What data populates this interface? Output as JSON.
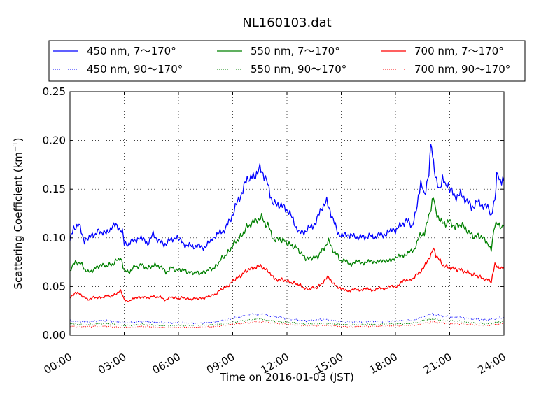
{
  "chart_data": {
    "type": "line",
    "title": "NL160103.dat",
    "xlabel": "Time on 2016-01-03 (JST)",
    "ylabel_main": "Scattering Coefficient (km",
    "ylabel_sup": "−1",
    "ylabel_close": ")",
    "xlim": [
      0,
      24
    ],
    "ylim": [
      0,
      0.25
    ],
    "x_ticks": [
      0,
      3,
      6,
      9,
      12,
      15,
      18,
      21,
      24
    ],
    "x_tick_labels": [
      "00:00",
      "03:00",
      "06:00",
      "09:00",
      "12:00",
      "15:00",
      "18:00",
      "21:00",
      "24:00"
    ],
    "y_ticks": [
      0,
      0.05,
      0.1,
      0.15,
      0.2,
      0.25
    ],
    "y_tick_labels": [
      "0.00",
      "0.05",
      "0.10",
      "0.15",
      "0.20",
      "0.25"
    ],
    "grid": true,
    "legend_position": "top (above plot)",
    "series": [
      {
        "name": "450 nm, 7～170°",
        "color": "#0000ff",
        "style": "solid",
        "x": [
          0,
          0.2,
          0.5,
          0.8,
          1.0,
          1.3,
          1.7,
          2.0,
          2.3,
          2.6,
          2.9,
          3.0,
          3.2,
          3.5,
          3.8,
          4.0,
          4.3,
          4.6,
          4.9,
          5.2,
          5.5,
          5.8,
          6.0,
          6.3,
          6.6,
          6.9,
          7.2,
          7.5,
          7.8,
          8.0,
          8.3,
          8.6,
          8.9,
          9.2,
          9.5,
          9.8,
          10.0,
          10.2,
          10.5,
          10.8,
          11.0,
          11.2,
          11.5,
          11.8,
          12.1,
          12.4,
          12.7,
          13.0,
          13.3,
          13.6,
          13.9,
          14.2,
          14.5,
          14.8,
          15.1,
          15.4,
          15.7,
          16.0,
          16.3,
          16.6,
          16.9,
          17.2,
          17.5,
          17.8,
          18.0,
          18.3,
          18.6,
          18.9,
          19.2,
          19.4,
          19.6,
          19.8,
          19.9,
          20.0,
          20.1,
          20.2,
          20.4,
          20.6,
          20.8,
          21.0,
          21.3,
          21.6,
          21.9,
          22.2,
          22.5,
          22.8,
          23.1,
          23.3,
          23.5,
          23.6,
          23.8,
          24.0
        ],
        "y": [
          0.097,
          0.112,
          0.114,
          0.098,
          0.1,
          0.104,
          0.106,
          0.103,
          0.11,
          0.112,
          0.105,
          0.097,
          0.093,
          0.098,
          0.1,
          0.098,
          0.094,
          0.104,
          0.098,
          0.094,
          0.098,
          0.101,
          0.1,
          0.094,
          0.093,
          0.092,
          0.092,
          0.09,
          0.098,
          0.103,
          0.106,
          0.11,
          0.12,
          0.133,
          0.145,
          0.158,
          0.163,
          0.166,
          0.172,
          0.165,
          0.152,
          0.133,
          0.134,
          0.131,
          0.128,
          0.116,
          0.106,
          0.108,
          0.112,
          0.116,
          0.131,
          0.136,
          0.121,
          0.104,
          0.101,
          0.103,
          0.101,
          0.101,
          0.102,
          0.103,
          0.102,
          0.105,
          0.103,
          0.11,
          0.109,
          0.114,
          0.119,
          0.112,
          0.13,
          0.156,
          0.143,
          0.161,
          0.18,
          0.2,
          0.173,
          0.168,
          0.151,
          0.162,
          0.156,
          0.15,
          0.144,
          0.146,
          0.141,
          0.132,
          0.137,
          0.134,
          0.13,
          0.122,
          0.14,
          0.165,
          0.156,
          0.158
        ]
      },
      {
        "name": "450 nm, 90～170°",
        "color": "#0000ff",
        "style": "dotted",
        "x": [
          0,
          1,
          2,
          3,
          4,
          5,
          6,
          7,
          8,
          9,
          10,
          10.5,
          11,
          12,
          13,
          14,
          15,
          16,
          17,
          18,
          19,
          19.5,
          20,
          21,
          22,
          23,
          24
        ],
        "y": [
          0.015,
          0.014,
          0.015,
          0.013,
          0.014,
          0.013,
          0.013,
          0.012,
          0.014,
          0.017,
          0.021,
          0.022,
          0.02,
          0.017,
          0.015,
          0.016,
          0.014,
          0.014,
          0.014,
          0.015,
          0.015,
          0.019,
          0.022,
          0.019,
          0.017,
          0.016,
          0.018
        ]
      },
      {
        "name": "550 nm, 7～170°",
        "color": "#008000",
        "style": "solid",
        "x": [
          0,
          0.3,
          0.6,
          1.0,
          1.3,
          1.7,
          2.0,
          2.4,
          2.8,
          3.0,
          3.3,
          3.6,
          4.0,
          4.3,
          4.7,
          5.0,
          5.3,
          5.6,
          6.0,
          6.4,
          6.8,
          7.2,
          7.6,
          8.0,
          8.4,
          8.8,
          9.2,
          9.6,
          10.0,
          10.3,
          10.6,
          11.0,
          11.3,
          11.6,
          12.0,
          12.4,
          12.8,
          13.2,
          13.6,
          14.0,
          14.3,
          14.6,
          15.0,
          15.5,
          16.0,
          16.5,
          17.0,
          17.5,
          18.0,
          18.5,
          19.0,
          19.3,
          19.6,
          19.9,
          20.1,
          20.3,
          20.6,
          21.0,
          21.3,
          21.7,
          22.0,
          22.4,
          22.8,
          23.1,
          23.3,
          23.5,
          23.8,
          24.0
        ],
        "y": [
          0.066,
          0.075,
          0.073,
          0.065,
          0.068,
          0.071,
          0.071,
          0.074,
          0.079,
          0.066,
          0.066,
          0.071,
          0.072,
          0.068,
          0.072,
          0.071,
          0.064,
          0.069,
          0.067,
          0.066,
          0.064,
          0.064,
          0.066,
          0.07,
          0.078,
          0.087,
          0.096,
          0.106,
          0.114,
          0.118,
          0.12,
          0.112,
          0.098,
          0.1,
          0.094,
          0.092,
          0.083,
          0.078,
          0.08,
          0.088,
          0.096,
          0.086,
          0.076,
          0.074,
          0.075,
          0.075,
          0.076,
          0.076,
          0.079,
          0.083,
          0.086,
          0.1,
          0.106,
          0.125,
          0.142,
          0.124,
          0.114,
          0.118,
          0.112,
          0.112,
          0.106,
          0.102,
          0.1,
          0.094,
          0.09,
          0.115,
          0.112,
          0.112
        ]
      },
      {
        "name": "550 nm, 90～170°",
        "color": "#008000",
        "style": "dotted",
        "x": [
          0,
          1,
          2,
          3,
          4,
          5,
          6,
          7,
          8,
          9,
          10,
          10.5,
          11,
          12,
          13,
          14,
          15,
          16,
          17,
          18,
          19,
          19.5,
          20,
          21,
          22,
          23,
          24
        ],
        "y": [
          0.012,
          0.011,
          0.012,
          0.01,
          0.011,
          0.01,
          0.01,
          0.01,
          0.011,
          0.013,
          0.016,
          0.017,
          0.015,
          0.013,
          0.012,
          0.012,
          0.011,
          0.011,
          0.011,
          0.012,
          0.012,
          0.015,
          0.017,
          0.015,
          0.013,
          0.012,
          0.014
        ]
      },
      {
        "name": "700 nm, 7～170°",
        "color": "#ff0000",
        "style": "solid",
        "x": [
          0,
          0.3,
          0.6,
          1.0,
          1.3,
          1.7,
          2.0,
          2.4,
          2.8,
          3.0,
          3.3,
          3.6,
          4.0,
          4.3,
          4.7,
          5.0,
          5.3,
          5.6,
          6.0,
          6.4,
          6.8,
          7.2,
          7.6,
          8.0,
          8.4,
          8.8,
          9.2,
          9.6,
          10.0,
          10.3,
          10.6,
          11.0,
          11.3,
          11.6,
          12.0,
          12.4,
          12.8,
          13.2,
          13.6,
          14.0,
          14.3,
          14.6,
          15.0,
          15.5,
          16.0,
          16.5,
          17.0,
          17.5,
          18.0,
          18.5,
          19.0,
          19.3,
          19.6,
          19.9,
          20.1,
          20.3,
          20.6,
          21.0,
          21.3,
          21.7,
          22.0,
          22.4,
          22.8,
          23.1,
          23.3,
          23.5,
          23.8,
          24.0
        ],
        "y": [
          0.038,
          0.044,
          0.041,
          0.037,
          0.039,
          0.038,
          0.04,
          0.041,
          0.045,
          0.037,
          0.035,
          0.039,
          0.039,
          0.038,
          0.04,
          0.039,
          0.036,
          0.039,
          0.038,
          0.038,
          0.037,
          0.038,
          0.039,
          0.042,
          0.047,
          0.052,
          0.058,
          0.064,
          0.068,
          0.07,
          0.07,
          0.066,
          0.058,
          0.058,
          0.055,
          0.054,
          0.05,
          0.047,
          0.049,
          0.054,
          0.06,
          0.052,
          0.047,
          0.046,
          0.047,
          0.047,
          0.047,
          0.049,
          0.05,
          0.056,
          0.058,
          0.064,
          0.07,
          0.082,
          0.09,
          0.08,
          0.072,
          0.07,
          0.068,
          0.066,
          0.064,
          0.062,
          0.058,
          0.057,
          0.054,
          0.072,
          0.07,
          0.07
        ]
      },
      {
        "name": "700 nm, 90～170°",
        "color": "#ff0000",
        "style": "dotted",
        "x": [
          0,
          1,
          2,
          3,
          4,
          5,
          6,
          7,
          8,
          9,
          10,
          10.5,
          11,
          12,
          13,
          14,
          15,
          16,
          17,
          18,
          19,
          19.5,
          20,
          21,
          22,
          23,
          24
        ],
        "y": [
          0.009,
          0.009,
          0.009,
          0.008,
          0.009,
          0.008,
          0.008,
          0.008,
          0.009,
          0.011,
          0.013,
          0.014,
          0.013,
          0.011,
          0.01,
          0.01,
          0.009,
          0.009,
          0.009,
          0.01,
          0.01,
          0.012,
          0.014,
          0.012,
          0.011,
          0.01,
          0.012
        ]
      }
    ]
  }
}
